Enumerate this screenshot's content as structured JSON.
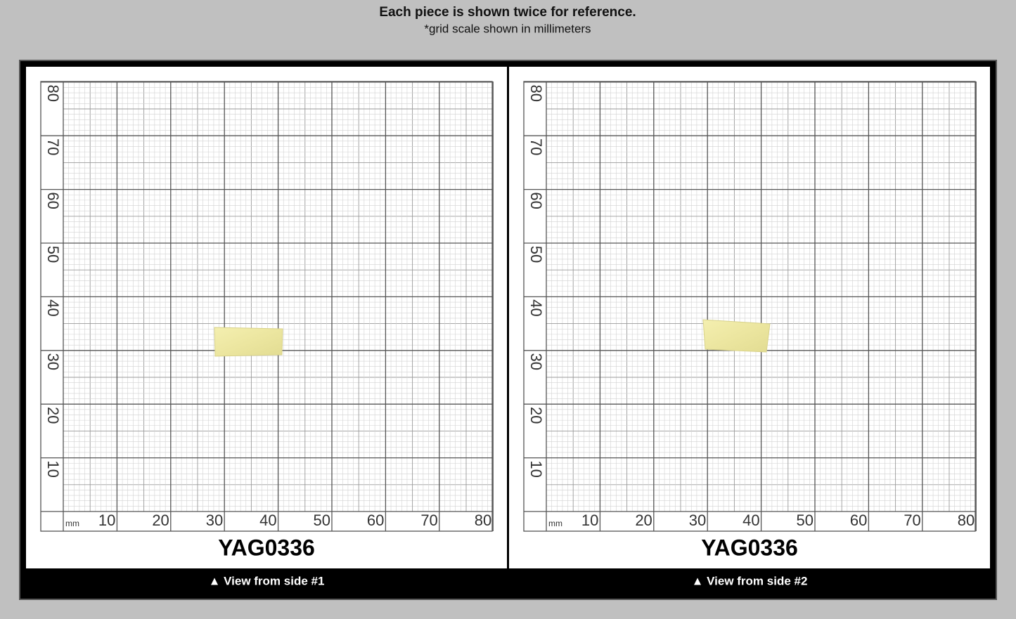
{
  "header": {
    "title": "Each piece is shown twice for reference.",
    "subtitle": "*grid scale shown in millimeters"
  },
  "panels": [
    {
      "title": "YAG0336",
      "caption": "▲ View from side #1",
      "unit": "mm",
      "x_labels": [
        10,
        20,
        30,
        40,
        50,
        60,
        70,
        80
      ],
      "y_labels": [
        10,
        20,
        30,
        40,
        50,
        60,
        70,
        80
      ]
    },
    {
      "title": "YAG0336",
      "caption": "▲ View from side #2",
      "unit": "mm",
      "x_labels": [
        10,
        20,
        30,
        40,
        50,
        60,
        70,
        80
      ],
      "y_labels": [
        10,
        20,
        30,
        40,
        50,
        60,
        70,
        80
      ]
    }
  ]
}
